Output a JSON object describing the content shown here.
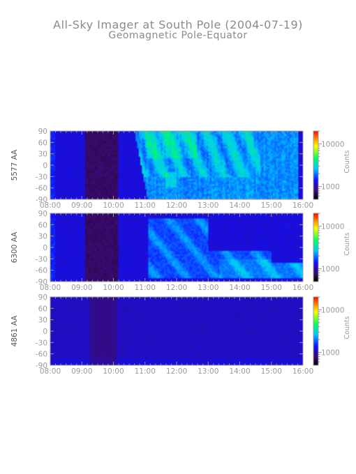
{
  "chart_data": {
    "type": "heatmap",
    "title": "All-Sky Imager at South Pole (2004-07-19)",
    "subtitle": "Geomagnetic Pole-Equator",
    "x_ticks": [
      "08:00",
      "09:00",
      "10:00",
      "11:00",
      "12:00",
      "13:00",
      "14:00",
      "15:00",
      "16:00"
    ],
    "x_range": [
      "08:00",
      "16:00"
    ],
    "y_ticks": [
      90,
      60,
      30,
      0,
      -30,
      -60,
      -90
    ],
    "y_range": [
      -90,
      90
    ],
    "colorbar": {
      "label": "Counts",
      "ticks": [
        10000,
        1000
      ],
      "scale": "log",
      "range": [
        500,
        20000
      ]
    },
    "panels": [
      {
        "ylabel": "5577 AA",
        "onset": "10:40",
        "intensity": "strong"
      },
      {
        "ylabel": "6300 AA",
        "onset": "11:00",
        "intensity": "medium"
      },
      {
        "ylabel": "4861 AA",
        "onset": "none",
        "intensity": "weak"
      }
    ]
  },
  "colors": {
    "axis": "#9a9a9a",
    "background_dark": "#1a0a3a",
    "background_mid": "#2e2a9a",
    "aurora_bright": "#00e0ff"
  }
}
